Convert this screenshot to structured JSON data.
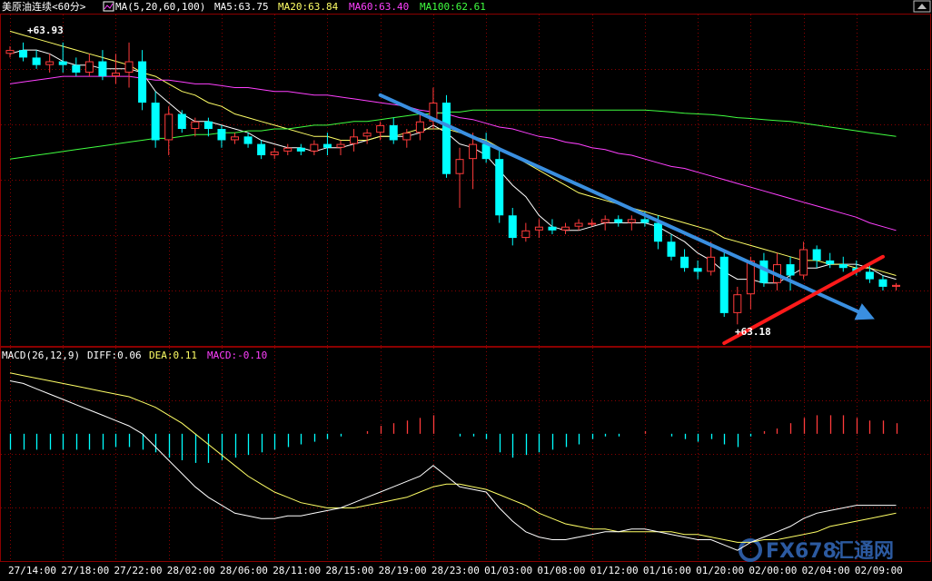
{
  "header": {
    "instrument": "美原油连续<60分>",
    "ma_label": "MA(5,20,60,100)",
    "ma5": "MA5:63.75",
    "ma20": "MA20:63.84",
    "ma60": "MA60:63.40",
    "ma100": "MA100:62.61"
  },
  "macd_header": {
    "label": "MACD(26,12,9)",
    "diff": "DIFF:0.06",
    "dea": "DEA:0.11",
    "macd": "MACD:-0.10"
  },
  "annotations": {
    "high_label": "+63.93",
    "low_label": "+63.18"
  },
  "watermark": {
    "text": "FX678",
    "sub": "汇通网"
  },
  "colors": {
    "background": "#000000",
    "up_candle": "#ff3b3b",
    "down_candle": "#00ffff",
    "ma5": "#ffffff",
    "ma20": "#ffff66",
    "ma60": "#ff40ff",
    "ma100": "#40ff40",
    "trend_down": "#3a8fe0",
    "trend_up": "#ff1a1a",
    "grid": "#8b0000",
    "diff_line": "#ffffff",
    "dea_line": "#ffff66"
  },
  "chart_data": {
    "type": "candlestick",
    "price_range": [
      63.13,
      63.99
    ],
    "macd_range": [
      -0.46,
      0.26
    ],
    "x_tick_labels": [
      "27/14:00",
      "27/18:00",
      "27/22:00",
      "28/02:00",
      "28/06:00",
      "28/11:00",
      "28/15:00",
      "28/19:00",
      "28/23:00",
      "01/03:00",
      "01/08:00",
      "01/12:00",
      "01/16:00",
      "01/20:00",
      "02/00:00",
      "02/04:00",
      "02/09:00"
    ],
    "x_tick_bar_index": [
      0,
      4,
      8,
      12,
      16,
      20,
      24,
      28,
      32,
      36,
      40,
      44,
      48,
      52,
      56,
      60,
      64
    ],
    "candles": [
      [
        63.9,
        63.92,
        63.89,
        63.91
      ],
      [
        63.91,
        63.93,
        63.88,
        63.89
      ],
      [
        63.89,
        63.91,
        63.86,
        63.87
      ],
      [
        63.87,
        63.9,
        63.85,
        63.88
      ],
      [
        63.88,
        63.93,
        63.85,
        63.87
      ],
      [
        63.87,
        63.89,
        63.84,
        63.85
      ],
      [
        63.85,
        63.9,
        63.84,
        63.88
      ],
      [
        63.88,
        63.91,
        63.83,
        63.84
      ],
      [
        63.84,
        63.9,
        63.82,
        63.85
      ],
      [
        63.85,
        63.93,
        63.81,
        63.88
      ],
      [
        63.88,
        63.91,
        63.75,
        63.77
      ],
      [
        63.77,
        63.8,
        63.65,
        63.67
      ],
      [
        63.67,
        63.76,
        63.63,
        63.74
      ],
      [
        63.74,
        63.75,
        63.69,
        63.7
      ],
      [
        63.7,
        63.73,
        63.68,
        63.72
      ],
      [
        63.72,
        63.73,
        63.68,
        63.7
      ],
      [
        63.7,
        63.71,
        63.65,
        63.67
      ],
      [
        63.67,
        63.69,
        63.66,
        63.68
      ],
      [
        63.68,
        63.69,
        63.65,
        63.66
      ],
      [
        63.66,
        63.67,
        63.62,
        63.63
      ],
      [
        63.63,
        63.65,
        63.62,
        63.64
      ],
      [
        63.64,
        63.66,
        63.63,
        63.65
      ],
      [
        63.65,
        63.66,
        63.63,
        63.64
      ],
      [
        63.64,
        63.67,
        63.63,
        63.66
      ],
      [
        63.66,
        63.69,
        63.63,
        63.65
      ],
      [
        63.65,
        63.67,
        63.63,
        63.66
      ],
      [
        63.66,
        63.7,
        63.64,
        63.68
      ],
      [
        63.68,
        63.7,
        63.66,
        63.69
      ],
      [
        63.69,
        63.72,
        63.67,
        63.71
      ],
      [
        63.71,
        63.73,
        63.66,
        63.67
      ],
      [
        63.67,
        63.7,
        63.65,
        63.69
      ],
      [
        63.69,
        63.74,
        63.67,
        63.72
      ],
      [
        63.72,
        63.81,
        63.7,
        63.77
      ],
      [
        63.77,
        63.79,
        63.57,
        63.58
      ],
      [
        63.58,
        63.65,
        63.49,
        63.62
      ],
      [
        63.62,
        63.69,
        63.54,
        63.66
      ],
      [
        63.66,
        63.69,
        63.61,
        63.62
      ],
      [
        63.62,
        63.65,
        63.45,
        63.47
      ],
      [
        63.47,
        63.49,
        63.39,
        63.41
      ],
      [
        63.41,
        63.45,
        63.4,
        63.43
      ],
      [
        63.43,
        63.46,
        63.41,
        63.44
      ],
      [
        63.44,
        63.46,
        63.42,
        63.43
      ],
      [
        63.43,
        63.45,
        63.42,
        63.44
      ],
      [
        63.44,
        63.46,
        63.43,
        63.45
      ],
      [
        63.45,
        63.46,
        63.44,
        63.45
      ],
      [
        63.45,
        63.47,
        63.43,
        63.46
      ],
      [
        63.46,
        63.47,
        63.44,
        63.45
      ],
      [
        63.45,
        63.47,
        63.43,
        63.46
      ],
      [
        63.46,
        63.48,
        63.44,
        63.45
      ],
      [
        63.45,
        63.47,
        63.38,
        63.4
      ],
      [
        63.4,
        63.42,
        63.35,
        63.36
      ],
      [
        63.36,
        63.38,
        63.32,
        63.33
      ],
      [
        63.33,
        63.35,
        63.3,
        63.32
      ],
      [
        63.32,
        63.4,
        63.31,
        63.36
      ],
      [
        63.36,
        63.38,
        63.2,
        63.21
      ],
      [
        63.21,
        63.28,
        63.18,
        63.26
      ],
      [
        63.26,
        63.36,
        63.22,
        63.35
      ],
      [
        63.35,
        63.37,
        63.28,
        63.29
      ],
      [
        63.29,
        63.37,
        63.27,
        63.34
      ],
      [
        63.34,
        63.36,
        63.27,
        63.31
      ],
      [
        63.31,
        63.4,
        63.3,
        63.38
      ],
      [
        63.38,
        63.39,
        63.33,
        63.35
      ],
      [
        63.35,
        63.37,
        63.33,
        63.34
      ],
      [
        63.34,
        63.36,
        63.32,
        63.33
      ],
      [
        63.33,
        63.35,
        63.31,
        63.32
      ],
      [
        63.32,
        63.34,
        63.29,
        63.3
      ],
      [
        63.3,
        63.31,
        63.27,
        63.28
      ],
      [
        63.28,
        63.29,
        63.27,
        63.285
      ]
    ],
    "ma_series": [
      {
        "name": "MA5",
        "key": "ma5",
        "values": [
          63.9,
          63.91,
          63.91,
          63.9,
          63.88,
          63.87,
          63.87,
          63.86,
          63.86,
          63.86,
          63.85,
          63.8,
          63.77,
          63.74,
          63.72,
          63.72,
          63.71,
          63.7,
          63.69,
          63.67,
          63.66,
          63.65,
          63.65,
          63.64,
          63.65,
          63.65,
          63.66,
          63.67,
          63.68,
          63.68,
          63.68,
          63.69,
          63.71,
          63.69,
          63.66,
          63.65,
          63.63,
          63.59,
          63.55,
          63.52,
          63.47,
          63.44,
          63.43,
          63.43,
          63.44,
          63.45,
          63.45,
          63.45,
          63.45,
          63.44,
          63.42,
          63.4,
          63.37,
          63.35,
          63.32,
          63.3,
          63.3,
          63.29,
          63.29,
          63.31,
          63.33,
          63.33,
          63.34,
          63.34,
          63.34,
          63.33,
          63.31,
          63.3
        ]
      },
      {
        "name": "MA20",
        "key": "ma20",
        "values": [
          63.96,
          63.95,
          63.94,
          63.93,
          63.92,
          63.91,
          63.9,
          63.89,
          63.88,
          63.87,
          63.85,
          63.84,
          63.82,
          63.8,
          63.79,
          63.77,
          63.76,
          63.74,
          63.73,
          63.72,
          63.71,
          63.7,
          63.69,
          63.68,
          63.68,
          63.67,
          63.67,
          63.67,
          63.68,
          63.68,
          63.69,
          63.7,
          63.7,
          63.7,
          63.69,
          63.68,
          63.67,
          63.65,
          63.63,
          63.61,
          63.59,
          63.57,
          63.55,
          63.53,
          63.52,
          63.51,
          63.5,
          63.49,
          63.48,
          63.47,
          63.46,
          63.45,
          63.44,
          63.43,
          63.41,
          63.4,
          63.39,
          63.38,
          63.37,
          63.36,
          63.35,
          63.35,
          63.34,
          63.34,
          63.33,
          63.33,
          63.32,
          63.31
        ]
      },
      {
        "name": "MA60",
        "key": "ma60",
        "values": [
          63.82,
          63.825,
          63.83,
          63.835,
          63.84,
          63.84,
          63.84,
          63.84,
          63.84,
          63.84,
          63.835,
          63.83,
          63.83,
          63.825,
          63.82,
          63.82,
          63.815,
          63.81,
          63.81,
          63.805,
          63.8,
          63.8,
          63.795,
          63.79,
          63.79,
          63.785,
          63.78,
          63.775,
          63.77,
          63.765,
          63.76,
          63.75,
          63.745,
          63.74,
          63.73,
          63.725,
          63.715,
          63.705,
          63.7,
          63.69,
          63.68,
          63.675,
          63.665,
          63.66,
          63.65,
          63.645,
          63.635,
          63.63,
          63.62,
          63.61,
          63.6,
          63.595,
          63.585,
          63.575,
          63.565,
          63.555,
          63.545,
          63.535,
          63.525,
          63.515,
          63.505,
          63.495,
          63.485,
          63.475,
          63.465,
          63.45,
          63.44,
          63.43
        ]
      },
      {
        "name": "MA100",
        "key": "ma100",
        "values": [
          63.62,
          63.625,
          63.63,
          63.635,
          63.64,
          63.645,
          63.65,
          63.655,
          63.66,
          63.665,
          63.67,
          63.675,
          63.675,
          63.68,
          63.685,
          63.685,
          63.69,
          63.69,
          63.695,
          63.695,
          63.7,
          63.7,
          63.705,
          63.71,
          63.71,
          63.715,
          63.72,
          63.72,
          63.725,
          63.73,
          63.735,
          63.74,
          63.74,
          63.745,
          63.745,
          63.75,
          63.75,
          63.75,
          63.75,
          63.75,
          63.75,
          63.75,
          63.75,
          63.75,
          63.75,
          63.75,
          63.75,
          63.75,
          63.75,
          63.748,
          63.745,
          63.742,
          63.74,
          63.738,
          63.735,
          63.73,
          63.728,
          63.725,
          63.722,
          63.72,
          63.715,
          63.71,
          63.705,
          63.7,
          63.695,
          63.69,
          63.685,
          63.68
        ]
      }
    ],
    "macd": {
      "diff": [
        0.2,
        0.19,
        0.17,
        0.15,
        0.13,
        0.11,
        0.09,
        0.07,
        0.05,
        0.03,
        0.0,
        -0.05,
        -0.1,
        -0.15,
        -0.2,
        -0.24,
        -0.27,
        -0.3,
        -0.31,
        -0.32,
        -0.32,
        -0.31,
        -0.31,
        -0.3,
        -0.29,
        -0.28,
        -0.26,
        -0.24,
        -0.22,
        -0.2,
        -0.18,
        -0.16,
        -0.12,
        -0.16,
        -0.2,
        -0.21,
        -0.22,
        -0.28,
        -0.33,
        -0.37,
        -0.39,
        -0.4,
        -0.4,
        -0.39,
        -0.38,
        -0.37,
        -0.37,
        -0.36,
        -0.36,
        -0.37,
        -0.38,
        -0.39,
        -0.4,
        -0.4,
        -0.42,
        -0.44,
        -0.41,
        -0.39,
        -0.37,
        -0.35,
        -0.32,
        -0.3,
        -0.29,
        -0.28,
        -0.27,
        -0.27,
        -0.27,
        -0.27
      ],
      "dea": [
        0.23,
        0.22,
        0.21,
        0.2,
        0.19,
        0.18,
        0.17,
        0.16,
        0.15,
        0.14,
        0.12,
        0.1,
        0.07,
        0.04,
        0.0,
        -0.04,
        -0.08,
        -0.12,
        -0.16,
        -0.19,
        -0.22,
        -0.24,
        -0.26,
        -0.27,
        -0.28,
        -0.28,
        -0.28,
        -0.27,
        -0.26,
        -0.25,
        -0.24,
        -0.22,
        -0.2,
        -0.19,
        -0.19,
        -0.2,
        -0.21,
        -0.23,
        -0.25,
        -0.27,
        -0.3,
        -0.32,
        -0.34,
        -0.35,
        -0.36,
        -0.36,
        -0.37,
        -0.37,
        -0.37,
        -0.37,
        -0.37,
        -0.38,
        -0.38,
        -0.39,
        -0.4,
        -0.41,
        -0.41,
        -0.4,
        -0.4,
        -0.39,
        -0.38,
        -0.37,
        -0.35,
        -0.34,
        -0.33,
        -0.32,
        -0.31,
        -0.3
      ],
      "hist": [
        -0.06,
        -0.06,
        -0.06,
        -0.06,
        -0.06,
        -0.06,
        -0.06,
        -0.06,
        -0.05,
        -0.05,
        -0.06,
        -0.07,
        -0.09,
        -0.1,
        -0.11,
        -0.11,
        -0.1,
        -0.09,
        -0.08,
        -0.07,
        -0.06,
        -0.05,
        -0.04,
        -0.03,
        -0.02,
        -0.01,
        0.0,
        0.01,
        0.03,
        0.04,
        0.05,
        0.06,
        0.07,
        0.0,
        -0.01,
        -0.01,
        -0.02,
        -0.07,
        -0.09,
        -0.08,
        -0.07,
        -0.06,
        -0.05,
        -0.04,
        -0.02,
        -0.01,
        -0.01,
        0.0,
        0.01,
        0.0,
        -0.01,
        -0.02,
        -0.03,
        -0.02,
        -0.04,
        -0.05,
        -0.01,
        0.01,
        0.02,
        0.04,
        0.06,
        0.07,
        0.07,
        0.07,
        0.06,
        0.05,
        0.05,
        0.04
      ]
    },
    "trendlines": [
      {
        "name": "down",
        "from": [
          28,
          63.79
        ],
        "to": [
          65,
          63.2
        ],
        "arrow": true
      },
      {
        "name": "up",
        "from": [
          54,
          63.13
        ],
        "to": [
          66,
          63.36
        ],
        "arrow": false
      }
    ]
  }
}
